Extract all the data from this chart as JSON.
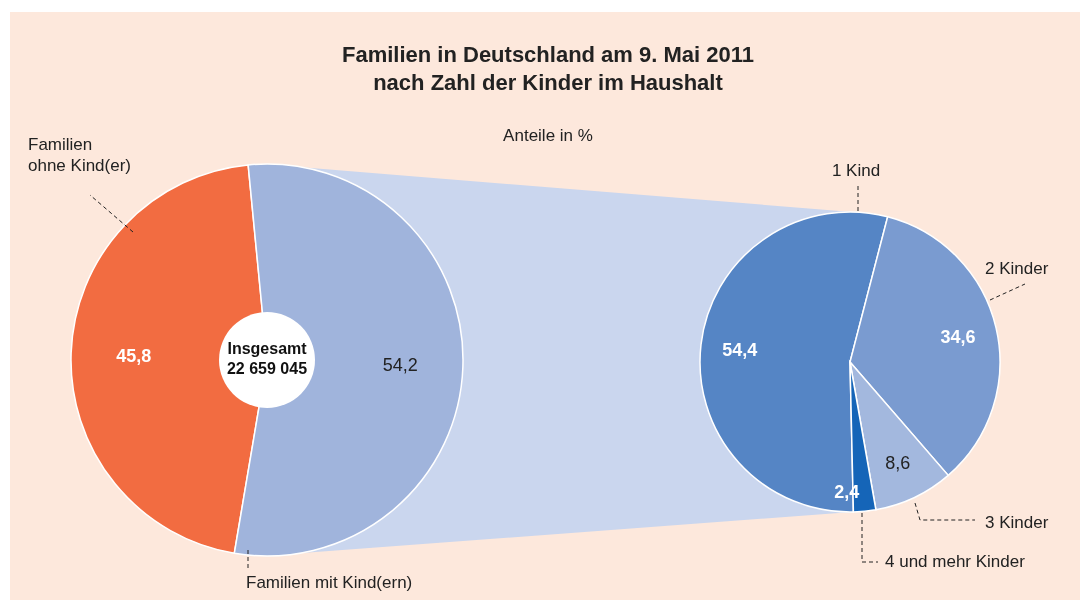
{
  "chart_data": [
    {
      "type": "donut",
      "title": "Familien in Deutschland am 9. Mai 2011\nnach Zahl der Kinder im Haushalt",
      "subtitle": "Anteile in %",
      "categories": [
        "Familien ohne Kind(er)",
        "Familien mit Kind(ern)"
      ],
      "values": [
        45.8,
        54.2
      ],
      "colors": [
        "#f26c41",
        "#a0b4dc"
      ],
      "value_labels": [
        "45,8",
        "54,2"
      ],
      "annotations": [
        "Insgesamt\n22 659 045"
      ]
    },
    {
      "type": "pie",
      "categories": [
        "1 Kind",
        "2 Kinder",
        "3 Kinder",
        "4 und mehr Kinder"
      ],
      "values": [
        54.4,
        34.6,
        8.6,
        2.4
      ],
      "colors": [
        "#5585c5",
        "#7a9bd0",
        "#a3b8de",
        "#1565b8"
      ],
      "value_labels": [
        "54,4",
        "34,6",
        "8,6",
        "2,4"
      ]
    }
  ]
}
